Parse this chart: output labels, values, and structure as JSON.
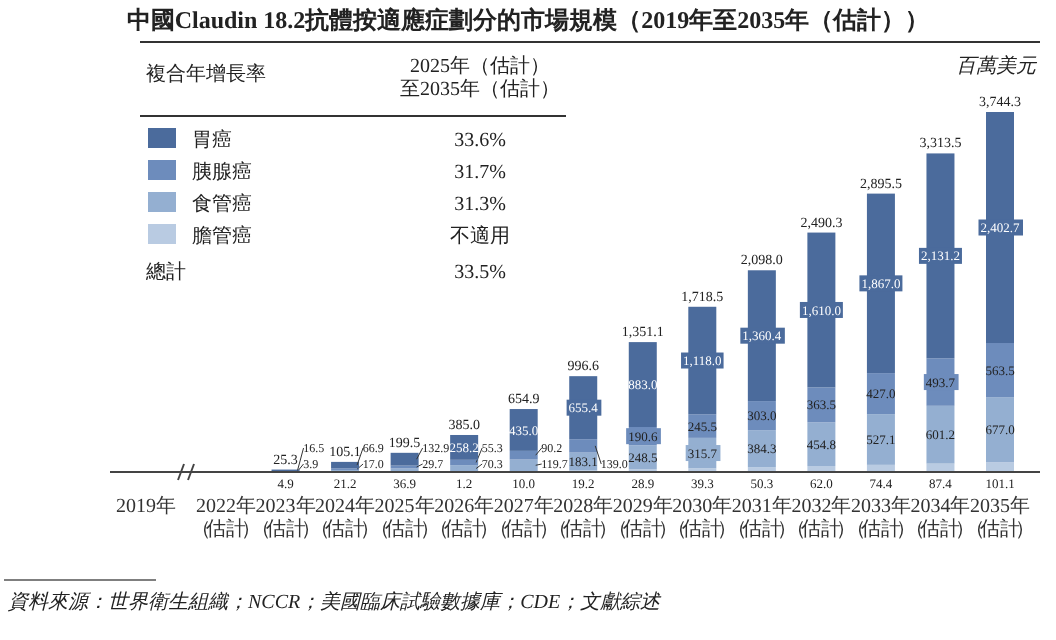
{
  "chart_data": {
    "type": "bar",
    "stacked": true,
    "title": "中國Claudin 18.2抗體按適應症劃分的市場規模（2019年至2035年（估計））",
    "ylabel": "百萬美元",
    "legend": "top left",
    "legend_title": "複合年增長率",
    "categories": [
      "2019年",
      "2022年（估計）",
      "2023年（估計）",
      "2024年（估計）",
      "2025年（估計）",
      "2026年（估計）",
      "2027年（估計）",
      "2028年（估計）",
      "2029年（估計）",
      "2030年（估計）",
      "2031年（估計）",
      "2032年（估計）",
      "2033年（估計）",
      "2034年（估計）",
      "2035年（估計）"
    ],
    "series": [
      {
        "name": "膽管癌",
        "color": "#b9cbe2",
        "values": [
          null,
          null,
          null,
          null,
          null,
          1.2,
          10.0,
          19.2,
          28.9,
          39.3,
          50.3,
          62.0,
          74.4,
          87.4,
          101.1
        ],
        "value_labels": [
          null,
          null,
          null,
          null,
          null,
          "1.2",
          "10.0",
          "19.2",
          "28.9",
          "39.3",
          "50.3",
          "62.0",
          "74.4",
          "87.4",
          "101.1"
        ]
      },
      {
        "name": "食管癌",
        "color": "#94afd1",
        "values": [
          null,
          null,
          4.9,
          21.2,
          36.9,
          70.3,
          119.7,
          183.1,
          248.5,
          315.7,
          384.3,
          454.8,
          527.1,
          601.2,
          677.0
        ],
        "value_labels": [
          null,
          null,
          "4.9",
          "21.2",
          "36.9",
          "70.3",
          "119.7",
          "183.1",
          "248.5",
          "315.7",
          "384.3",
          "454.8",
          "527.1",
          "601.2",
          "677.0"
        ]
      },
      {
        "name": "胰腺癌",
        "color": "#6d8cbc",
        "values": [
          null,
          null,
          3.9,
          17.0,
          29.7,
          55.3,
          90.2,
          139.0,
          190.6,
          245.5,
          303.0,
          363.5,
          427.0,
          493.7,
          563.5
        ],
        "value_labels": [
          null,
          null,
          "3.9",
          "17.0",
          "29.7",
          "55.3",
          "90.2",
          "139.0",
          "190.6",
          "245.5",
          "303.0",
          "363.5",
          "427.0",
          "493.7",
          "563.5"
        ]
      },
      {
        "name": "胃癌",
        "color": "#4b6b9c",
        "values": [
          null,
          null,
          16.5,
          66.9,
          132.9,
          258.2,
          435.0,
          655.4,
          883.0,
          1118.0,
          1360.4,
          1610.0,
          1867.0,
          2131.2,
          2402.7
        ],
        "value_labels": [
          null,
          null,
          "16.5",
          "66.9",
          "132.9",
          "258.2",
          "435.0",
          "655.4",
          "883.0",
          "1,118.0",
          "1,360.4",
          "1,610.0",
          "1,867.0",
          "2,131.2",
          "2,402.7"
        ]
      }
    ],
    "totals": [
      null,
      null,
      "25.3",
      "105.1",
      "199.5",
      "385.0",
      "654.9",
      "996.6",
      "1,351.1",
      "1,718.5",
      "2,098.0",
      "2,490.3",
      "2,895.5",
      "3,313.5",
      "3,744.3"
    ],
    "annotations": [
      "2025年（估計）至2035年（估計）",
      "33.6%",
      "31.7%",
      "31.3%",
      "不適用",
      "總計",
      "33.5%",
      "資料來源：世界衛生組織；NCCR；美國臨床試驗數據庫；CDE；文獻綜述"
    ]
  }
}
